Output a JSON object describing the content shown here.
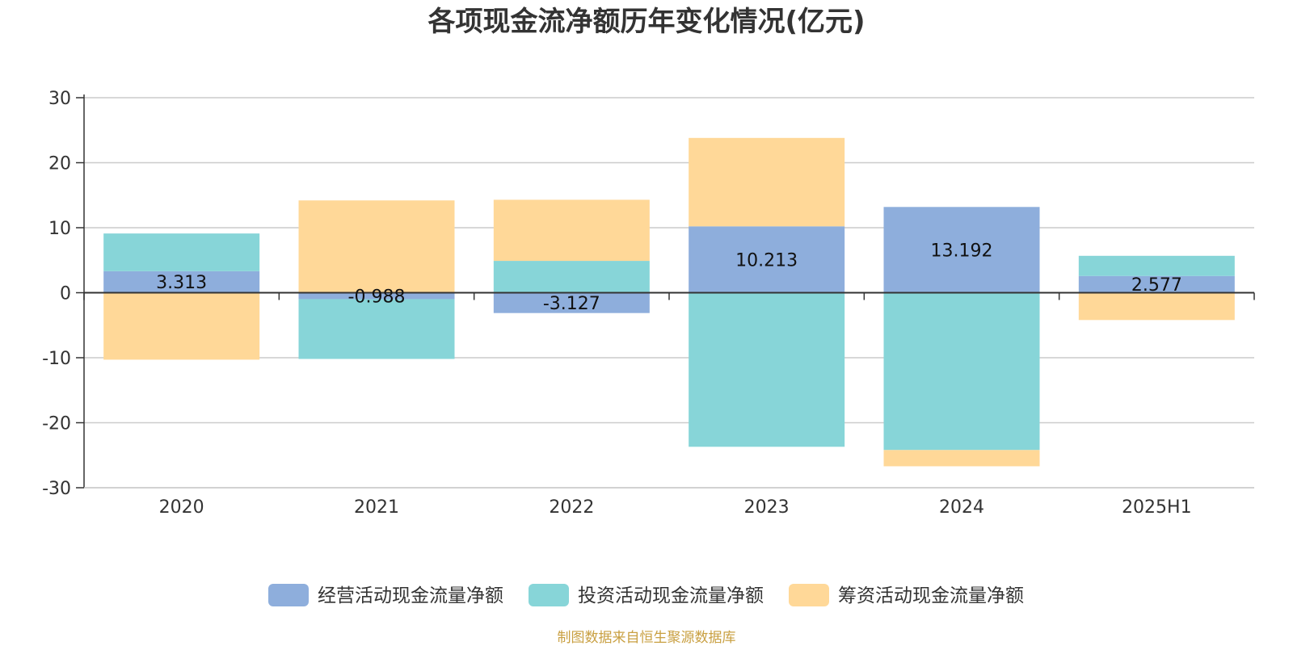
{
  "chart_data": {
    "type": "bar",
    "stacked": true,
    "title": "各项现金流净额历年变化情况(亿元)",
    "categories": [
      "2020",
      "2021",
      "2022",
      "2023",
      "2024",
      "2025H1"
    ],
    "ylim": [
      -30,
      30
    ],
    "yticks": [
      "30",
      "20",
      "10",
      "0",
      "-10",
      "-20",
      "-30"
    ],
    "grid": true,
    "legend_position": "bottom",
    "series": [
      {
        "name": "经营活动现金流量净额",
        "color": "#8eaedc",
        "values": [
          3.313,
          -0.988,
          -3.127,
          10.213,
          13.192,
          2.577
        ]
      },
      {
        "name": "投资活动现金流量净额",
        "color": "#87d5d8",
        "values": [
          5.8,
          -9.2,
          4.9,
          -23.7,
          -24.2,
          3.1
        ]
      },
      {
        "name": "筹资活动现金流量净额",
        "color": "#ffd898",
        "values": [
          -10.3,
          14.2,
          9.4,
          13.6,
          -2.5,
          -4.2
        ]
      }
    ],
    "data_labels": [
      "3.313",
      "-0.988",
      "-3.127",
      "10.213",
      "13.192",
      "2.577"
    ],
    "source": "制图数据来自恒生聚源数据库",
    "source_color": "#c9a042"
  }
}
